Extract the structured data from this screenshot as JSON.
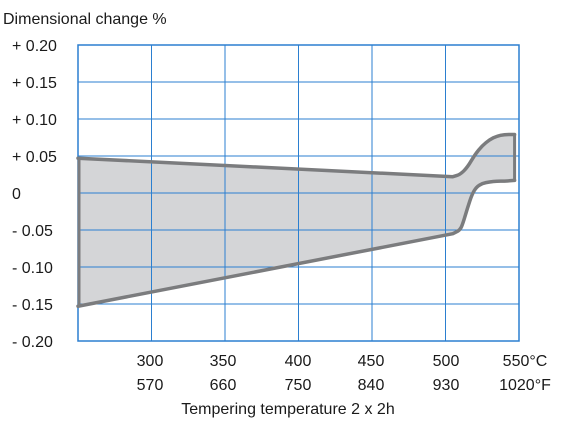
{
  "chart_data": {
    "type": "area",
    "ylabel": "Dimensional change %",
    "xlabel": "Tempering temperature  2 x 2h",
    "ylim": [
      -0.2,
      0.2
    ],
    "yticks": [
      0.2,
      0.15,
      0.1,
      0.05,
      0,
      -0.05,
      -0.1,
      -0.15,
      -0.2
    ],
    "ytick_labels": [
      "+ 0.20",
      "+ 0.15",
      "+ 0.10",
      "+ 0.05",
      "0",
      "- 0.05",
      "- 0.10",
      "- 0.15",
      "- 0.20"
    ],
    "xlim": [
      250,
      550
    ],
    "xticks_c": [
      "300",
      "350",
      "400",
      "450",
      "500",
      "550°C"
    ],
    "xticks_f": [
      "570",
      "660",
      "750",
      "840",
      "930",
      "1020°F"
    ],
    "grid": true,
    "colors": {
      "fill": "#d4d5d7",
      "line": "#7b7c7e",
      "grid": "#2b7fd0",
      "frame": "#2b7fd0"
    },
    "series": [
      {
        "x": [
          250,
          505,
          510,
          515,
          520,
          525,
          530,
          535,
          540,
          547
        ],
        "values": [
          0.047,
          0.022,
          0.025,
          0.035,
          0.052,
          0.064,
          0.072,
          0.077,
          0.079,
          0.079
        ]
      },
      {
        "x": [
          250,
          505,
          510,
          512,
          515,
          518,
          521,
          525,
          530,
          535,
          540,
          547
        ],
        "values": [
          -0.153,
          -0.055,
          -0.05,
          -0.04,
          -0.02,
          -0.002,
          0.008,
          0.013,
          0.015,
          0.016,
          0.016,
          0.017
        ]
      }
    ]
  }
}
